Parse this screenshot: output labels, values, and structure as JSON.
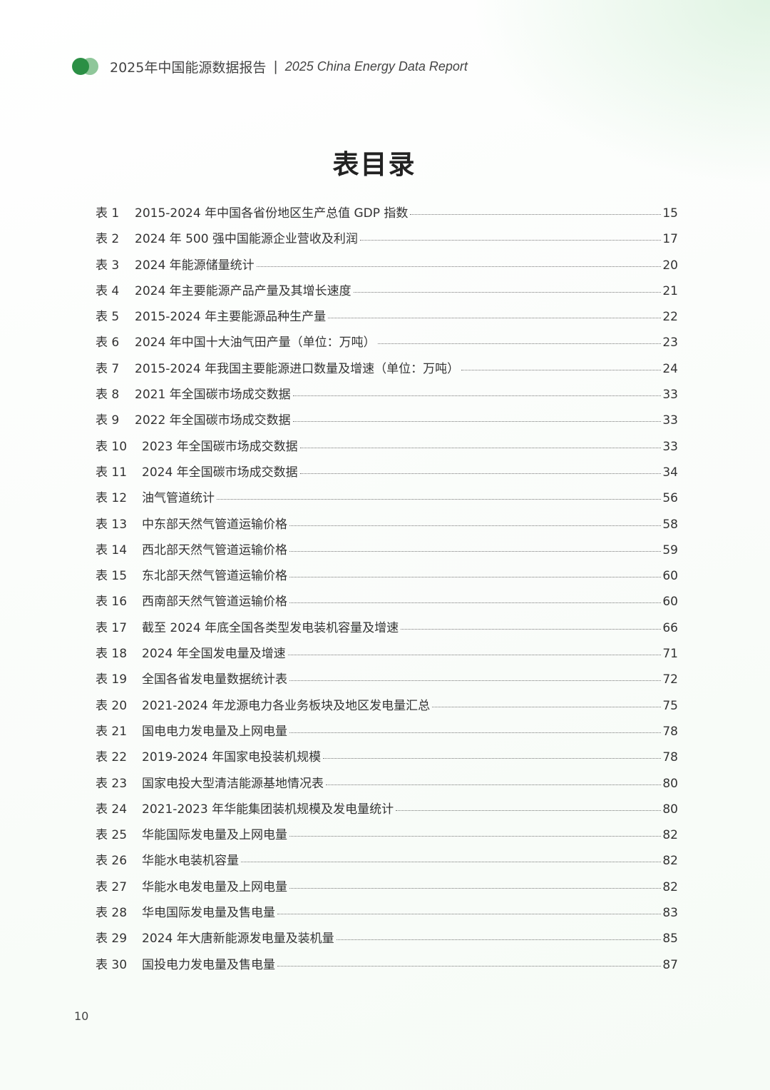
{
  "header": {
    "title_cn": "2025年中国能源数据报告",
    "separator": "|",
    "title_en": "2025 China Energy Data Report",
    "logo_colors": [
      "#2b8f45",
      "#8fc79a"
    ]
  },
  "page_title": "表目录",
  "entries": [
    {
      "label": "表 1",
      "title": "2015-2024 年中国各省份地区生产总值 GDP 指数",
      "page": "15"
    },
    {
      "label": "表 2",
      "title": "2024 年 500 强中国能源企业营收及利润",
      "page": "17"
    },
    {
      "label": "表 3",
      "title": "2024 年能源储量统计",
      "page": "20"
    },
    {
      "label": "表 4",
      "title": "2024 年主要能源产品产量及其增长速度",
      "page": "21"
    },
    {
      "label": "表 5",
      "title": "2015-2024 年主要能源品种生产量",
      "page": "22"
    },
    {
      "label": "表 6",
      "title": "2024 年中国十大油气田产量（单位：万吨）",
      "page": "23"
    },
    {
      "label": "表 7",
      "title": "2015-2024 年我国主要能源进口数量及增速（单位：万吨）",
      "page": "24"
    },
    {
      "label": "表 8",
      "title": "2021 年全国碳市场成交数据",
      "page": "33"
    },
    {
      "label": "表 9",
      "title": "2022 年全国碳市场成交数据",
      "page": "33"
    },
    {
      "label": "表 10",
      "title": "2023 年全国碳市场成交数据",
      "page": "33"
    },
    {
      "label": "表 11",
      "title": "2024 年全国碳市场成交数据",
      "page": "34"
    },
    {
      "label": "表 12",
      "title": "油气管道统计",
      "page": "56"
    },
    {
      "label": "表 13",
      "title": "中东部天然气管道运输价格",
      "page": "58"
    },
    {
      "label": "表 14",
      "title": "西北部天然气管道运输价格",
      "page": "59"
    },
    {
      "label": "表 15",
      "title": "东北部天然气管道运输价格",
      "page": "60"
    },
    {
      "label": "表 16",
      "title": "西南部天然气管道运输价格",
      "page": "60"
    },
    {
      "label": "表 17",
      "title": "截至 2024 年底全国各类型发电装机容量及增速",
      "page": "66"
    },
    {
      "label": "表 18",
      "title": "2024 年全国发电量及增速",
      "page": "71"
    },
    {
      "label": "表 19",
      "title": "全国各省发电量数据统计表",
      "page": "72"
    },
    {
      "label": "表 20",
      "title": "2021-2024 年龙源电力各业务板块及地区发电量汇总",
      "page": "75"
    },
    {
      "label": "表 21",
      "title": "国电电力发电量及上网电量",
      "page": "78"
    },
    {
      "label": "表 22",
      "title": "2019-2024 年国家电投装机规模",
      "page": "78"
    },
    {
      "label": "表 23",
      "title": "国家电投大型清洁能源基地情况表",
      "page": "80"
    },
    {
      "label": "表 24",
      "title": "2021-2023 年华能集团装机规模及发电量统计",
      "page": "80"
    },
    {
      "label": "表 25",
      "title": "华能国际发电量及上网电量",
      "page": "82"
    },
    {
      "label": "表 26",
      "title": "华能水电装机容量",
      "page": "82"
    },
    {
      "label": "表 27",
      "title": "华能水电发电量及上网电量",
      "page": "82"
    },
    {
      "label": "表 28",
      "title": "华电国际发电量及售电量",
      "page": "83"
    },
    {
      "label": "表 29",
      "title": "2024 年大唐新能源发电量及装机量",
      "page": "85"
    },
    {
      "label": "表 30",
      "title": "国投电力发电量及售电量",
      "page": "87"
    }
  ],
  "page_number": "10"
}
